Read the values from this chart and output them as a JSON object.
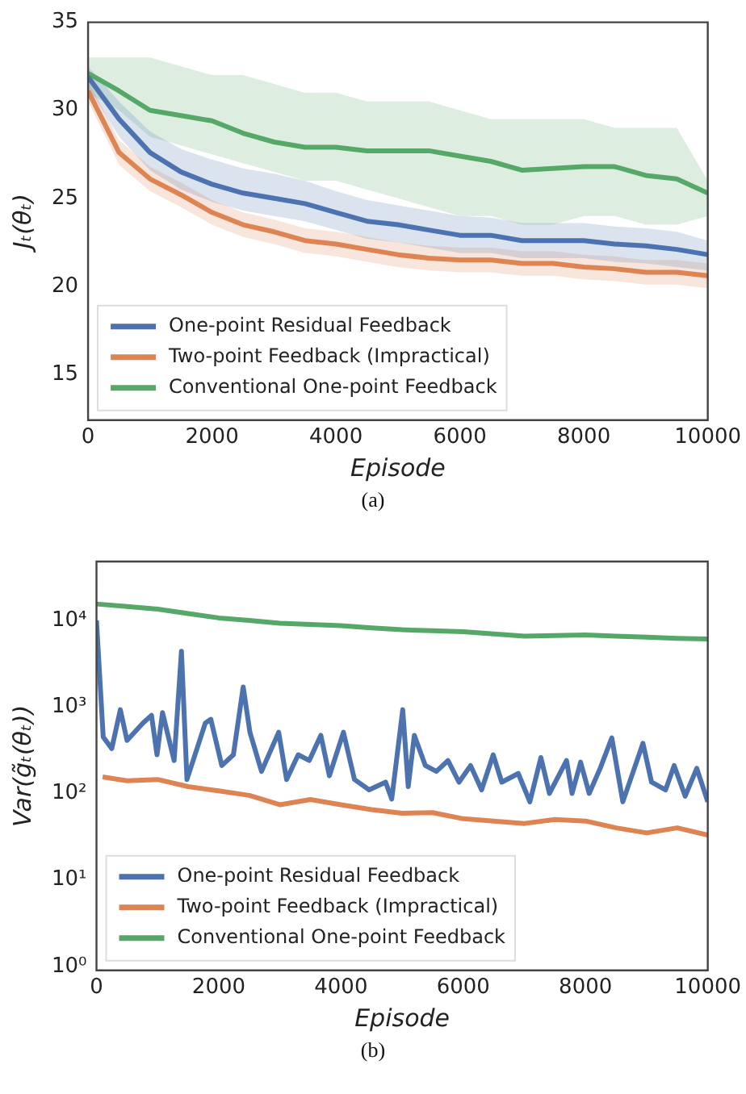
{
  "chart_data": [
    {
      "type": "line",
      "xlabel": "Episode",
      "ylabel": "Jₜ(θₜ)",
      "xlim": [
        0,
        10000
      ],
      "xticks": [
        0,
        2000,
        4000,
        6000,
        8000,
        10000
      ],
      "ylim": [
        12.4,
        35
      ],
      "yticks": [
        15,
        20,
        25,
        30,
        35
      ],
      "legend": "bottom left",
      "annotations": [
        "(a)"
      ],
      "x": [
        0,
        500,
        1000,
        1500,
        2000,
        2500,
        3000,
        3500,
        4000,
        4500,
        5000,
        5500,
        6000,
        6500,
        7000,
        7500,
        8000,
        8500,
        9000,
        9500,
        10000
      ],
      "series": [
        {
          "name": "One-point Residual Feedback",
          "color": "#4c72b0",
          "values": [
            31.9,
            29.5,
            27.6,
            26.5,
            25.8,
            25.3,
            25,
            24.7,
            24.2,
            23.7,
            23.5,
            23.2,
            22.9,
            22.9,
            22.6,
            22.6,
            22.6,
            22.4,
            22.3,
            22.1,
            21.8
          ],
          "lower": [
            31.3,
            28.5,
            26.6,
            25.5,
            24.8,
            24.3,
            24,
            23.7,
            23.2,
            22.7,
            22.5,
            22.2,
            21.9,
            21.9,
            21.6,
            21.6,
            21.6,
            21.4,
            21.3,
            21.1,
            20.9
          ],
          "upper": [
            32.5,
            30.5,
            28.8,
            27.8,
            27.2,
            26.7,
            26.4,
            26,
            25.4,
            24.9,
            24.6,
            24.3,
            24,
            23.9,
            23.6,
            23.6,
            23.6,
            23.4,
            23.3,
            23.1,
            22.6
          ]
        },
        {
          "name": "Two-point Feedback (Impractical)",
          "color": "#dd8452",
          "values": [
            31.1,
            27.6,
            26.1,
            25.2,
            24.2,
            23.5,
            23.1,
            22.6,
            22.4,
            22.1,
            21.8,
            21.6,
            21.5,
            21.5,
            21.3,
            21.3,
            21.1,
            21,
            20.8,
            20.8,
            20.6
          ],
          "lower": [
            30.5,
            26.9,
            25.4,
            24.5,
            23.5,
            22.8,
            22.4,
            21.9,
            21.7,
            21.4,
            21.1,
            20.9,
            20.8,
            20.8,
            20.6,
            20.6,
            20.4,
            20.3,
            20.1,
            20.1,
            19.9
          ],
          "upper": [
            31.7,
            28.3,
            26.8,
            25.9,
            24.9,
            24.2,
            23.8,
            23.3,
            23.1,
            22.8,
            22.5,
            22.3,
            22.2,
            22.2,
            22,
            22,
            21.8,
            21.7,
            21.5,
            21.5,
            21.3
          ]
        },
        {
          "name": "Conventional One-point Feedback",
          "color": "#55a868",
          "values": [
            32.1,
            31.1,
            30,
            29.7,
            29.4,
            28.7,
            28.2,
            27.9,
            27.9,
            27.7,
            27.7,
            27.7,
            27.4,
            27.1,
            26.6,
            26.7,
            26.8,
            26.8,
            26.3,
            26.1,
            25.3
          ],
          "lower": [
            31,
            30,
            28.5,
            28,
            27.5,
            27,
            26.5,
            26,
            26,
            25.5,
            25,
            24.5,
            24,
            24,
            23.5,
            23.5,
            24,
            24,
            23.5,
            23.5,
            24
          ],
          "upper": [
            33,
            33,
            33,
            32.5,
            32,
            32,
            31.5,
            31,
            31,
            30.5,
            30.5,
            30.5,
            30,
            29.5,
            29.5,
            29.5,
            29.5,
            29,
            29,
            29,
            26
          ]
        }
      ]
    },
    {
      "type": "line",
      "xlabel": "Episode",
      "ylabel": "Var(g̃ₜ(θₜ))",
      "log": "y",
      "xlim": [
        0,
        10000
      ],
      "xticks": [
        0,
        2000,
        4000,
        6000,
        8000,
        10000
      ],
      "ylim": [
        0.9,
        48000
      ],
      "yticks": [
        {
          "value": 1,
          "label": "10⁰"
        },
        {
          "value": 10,
          "label": "10¹"
        },
        {
          "value": 100,
          "label": "10²"
        },
        {
          "value": 1000,
          "label": "10³"
        },
        {
          "value": 10000,
          "label": "10⁴"
        }
      ],
      "legend": "bottom left",
      "annotations": [
        "(b)"
      ],
      "series": [
        {
          "name": "One-point Residual Feedback",
          "color": "#4c72b0",
          "x": [
            0,
            110,
            250,
            390,
            500,
            760,
            900,
            990,
            1080,
            1270,
            1390,
            1480,
            1780,
            1870,
            2050,
            2240,
            2400,
            2510,
            2700,
            2980,
            3110,
            3300,
            3480,
            3670,
            3810,
            4040,
            4220,
            4460,
            4730,
            4830,
            5010,
            5100,
            5200,
            5380,
            5560,
            5750,
            5930,
            6120,
            6300,
            6490,
            6630,
            6900,
            7090,
            7270,
            7410,
            7690,
            7780,
            7920,
            8060,
            8240,
            8430,
            8610,
            8940,
            9080,
            9310,
            9450,
            9630,
            9820,
            10000
          ],
          "values": [
            10000,
            450,
            330,
            930,
            410,
            650,
            800,
            280,
            860,
            240,
            4400,
            145,
            650,
            720,
            210,
            280,
            1700,
            510,
            180,
            510,
            145,
            280,
            240,
            470,
            160,
            510,
            145,
            110,
            135,
            86,
            930,
            120,
            470,
            210,
            180,
            240,
            135,
            210,
            110,
            280,
            135,
            170,
            80,
            260,
            100,
            240,
            100,
            230,
            100,
            195,
            440,
            80,
            380,
            135,
            110,
            210,
            93,
            195,
            80
          ]
        },
        {
          "name": "Two-point Feedback (Impractical)",
          "color": "#dd8452",
          "x": [
            100,
            500,
            1000,
            1500,
            2000,
            2500,
            3000,
            3500,
            4000,
            4500,
            5000,
            5500,
            6000,
            6500,
            7000,
            7500,
            8000,
            8500,
            9000,
            9500,
            10000
          ],
          "values": [
            155,
            140,
            145,
            120,
            107,
            95,
            74,
            85,
            74,
            65,
            59,
            60,
            51,
            48,
            45,
            50,
            48,
            40,
            35,
            40,
            33
          ]
        },
        {
          "name": "Conventional One-point Feedback",
          "color": "#55a868",
          "x": [
            0,
            500,
            1000,
            1500,
            2000,
            2500,
            3000,
            3500,
            4000,
            4500,
            5000,
            5500,
            6000,
            6500,
            7000,
            7500,
            8000,
            8500,
            9000,
            9500,
            10000
          ],
          "values": [
            15500,
            14500,
            13500,
            12000,
            10700,
            10000,
            9300,
            9000,
            8700,
            8200,
            7800,
            7600,
            7400,
            7000,
            6600,
            6700,
            6800,
            6600,
            6400,
            6200,
            6100
          ]
        }
      ]
    }
  ]
}
